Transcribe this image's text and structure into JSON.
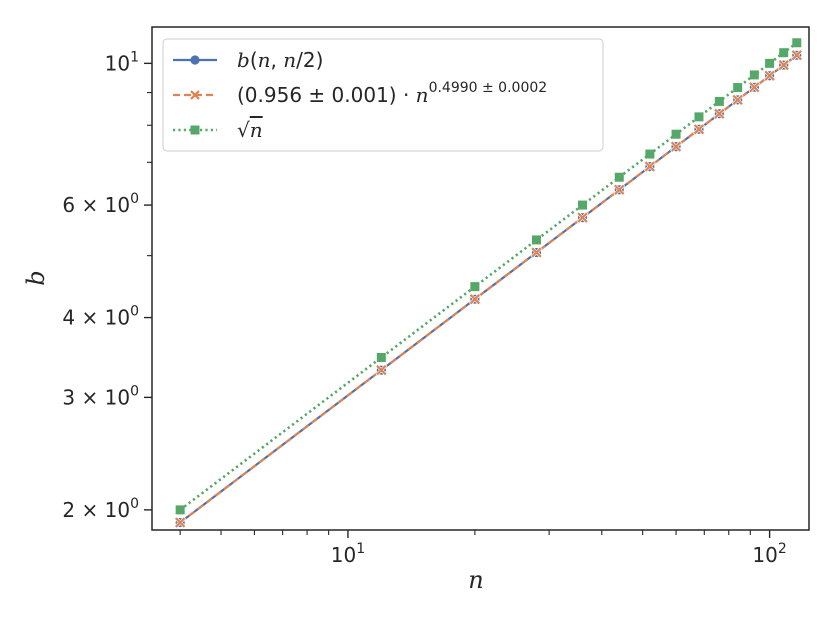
{
  "chart_data": {
    "type": "line",
    "xlabel": "n",
    "ylabel": "b",
    "xscale": "log",
    "yscale": "log",
    "xlim": [
      3.43,
      124
    ],
    "ylim": [
      1.86,
      11.4
    ],
    "grid": false,
    "legend_position": "top-left",
    "x": [
      4,
      12,
      20,
      28,
      36,
      44,
      52,
      60,
      68,
      76,
      84,
      92,
      100,
      108,
      116
    ],
    "series": [
      {
        "name": "b(n, n/2)",
        "color": "#4c72b0",
        "linestyle": "solid",
        "marker": "circle",
        "values": [
          1.911,
          3.31,
          4.274,
          5.058,
          5.735,
          6.34,
          6.894,
          7.407,
          7.886,
          8.338,
          8.766,
          9.174,
          9.564,
          9.938,
          10.297
        ]
      },
      {
        "name": "(0.956 ± 0.001) · n^(0.4990 ± 0.0002)",
        "color": "#dd8452",
        "linestyle": "dashed",
        "marker": "x",
        "values": [
          1.911,
          3.31,
          4.274,
          5.058,
          5.735,
          6.34,
          6.894,
          7.407,
          7.886,
          8.338,
          8.766,
          9.174,
          9.564,
          9.938,
          10.297
        ]
      },
      {
        "name": "√n",
        "color": "#55a868",
        "linestyle": "dotted",
        "marker": "square",
        "values": [
          2.0,
          3.464,
          4.472,
          5.292,
          6.0,
          6.633,
          7.211,
          7.746,
          8.246,
          8.718,
          9.165,
          9.592,
          10.0,
          10.392,
          10.77
        ]
      }
    ],
    "x_ticks": [
      {
        "value": 10,
        "base": "10",
        "exp": "1"
      },
      {
        "value": 100,
        "base": "10",
        "exp": "2"
      }
    ],
    "y_ticks": [
      {
        "value": 2,
        "mant": "2 × 10",
        "exp": "0"
      },
      {
        "value": 3,
        "mant": "3 × 10",
        "exp": "0"
      },
      {
        "value": 4,
        "mant": "4 × 10",
        "exp": "0"
      },
      {
        "value": 6,
        "mant": "6 × 10",
        "exp": "0"
      },
      {
        "value": 10,
        "mant": "10",
        "exp": "1"
      }
    ],
    "x_minor_ticks": [
      4,
      5,
      6,
      7,
      8,
      9,
      20,
      30,
      40,
      50,
      60,
      70,
      80,
      90
    ],
    "y_minor_ticks": [
      5,
      7,
      8,
      9
    ],
    "legend": {
      "entry1": {
        "b": "b",
        "open": "(",
        "n1": "n",
        "comma": ", ",
        "n2": "n",
        "rest": "/2)"
      },
      "entry2": {
        "pre": "(0.956 ± 0.001) · ",
        "n": "n",
        "exp": "0.4990 ± 0.0002"
      },
      "entry3": {
        "root": "√",
        "n": "n"
      }
    }
  }
}
